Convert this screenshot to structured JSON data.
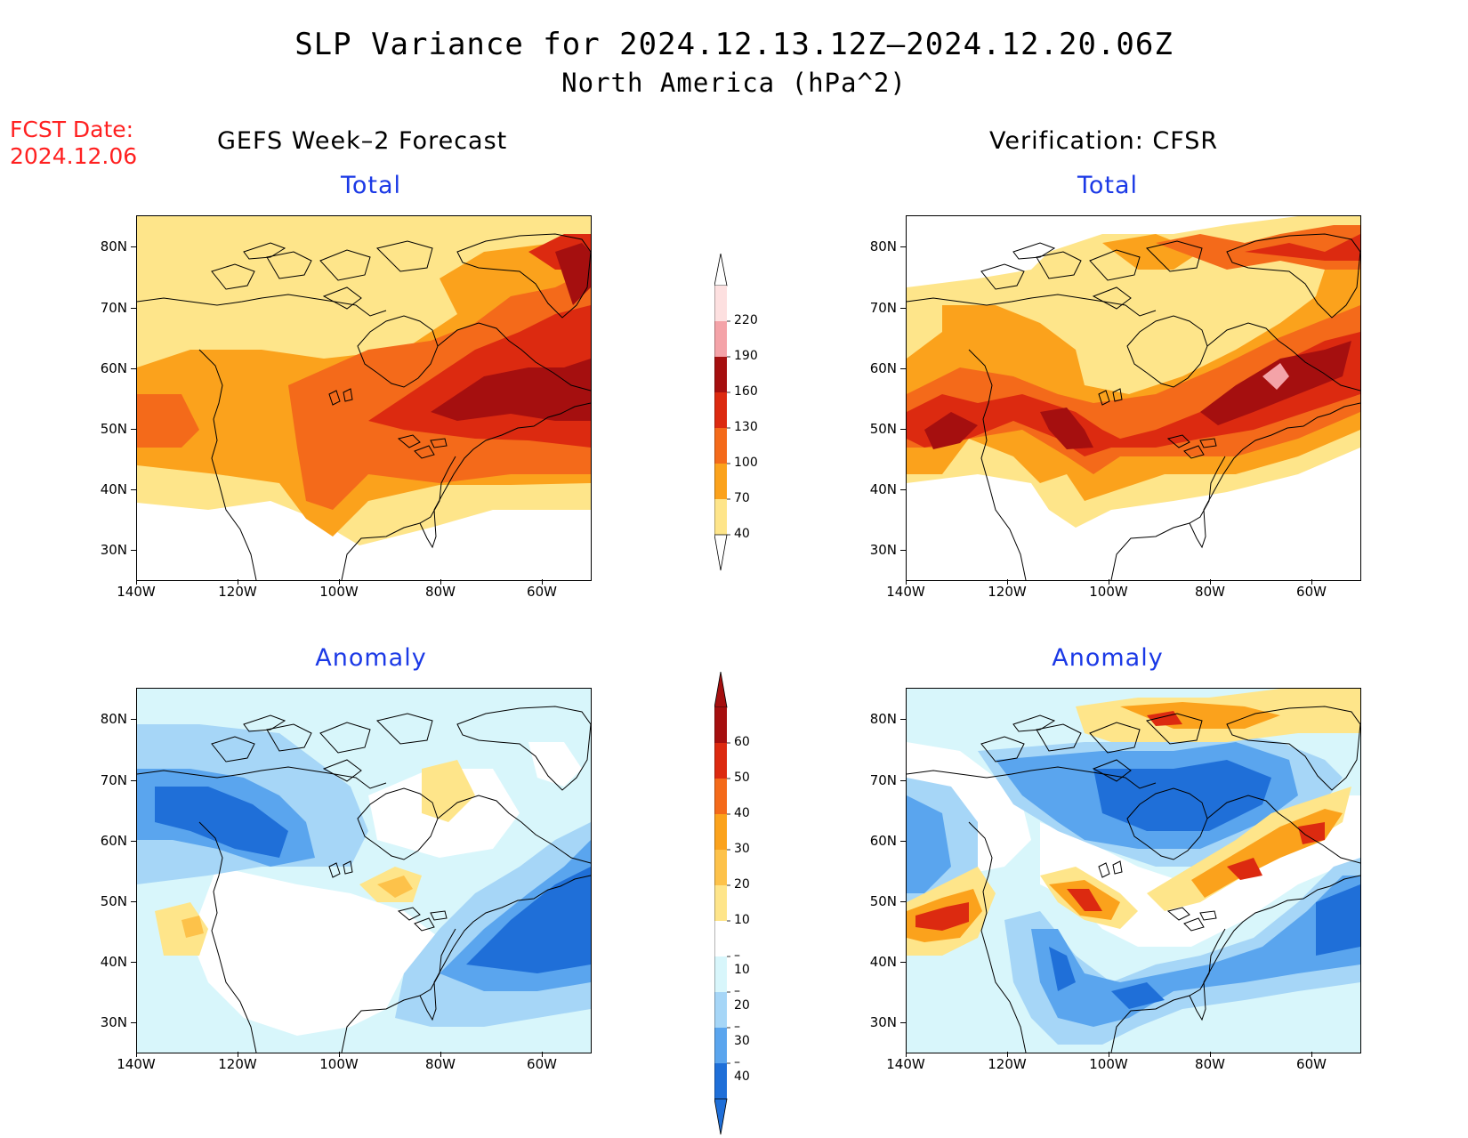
{
  "title_line1": "SLP Variance for 2024.12.13.12Z–2024.12.20.06Z",
  "title_line2": "North America (hPa^2)",
  "fcst_label": "FCST Date:",
  "fcst_date": "2024.12.06",
  "left_column_title": "GEFS Week–2 Forecast",
  "right_column_title": "Verification: CFSR",
  "panels": {
    "top_left_title": "Total",
    "top_right_title": "Total",
    "bottom_left_title": "Anomaly",
    "bottom_right_title": "Anomaly"
  },
  "axes": {
    "lat_labels": [
      "80N",
      "70N",
      "60N",
      "50N",
      "40N",
      "30N"
    ],
    "lon_labels": [
      "140W",
      "120W",
      "100W",
      "80W",
      "60W"
    ]
  },
  "total_colorbar": {
    "labels": [
      "220",
      "190",
      "160",
      "130",
      "100",
      "70",
      "40"
    ],
    "colors": [
      "#fde0e0",
      "#f4a3a8",
      "#a50f0f",
      "#dc2a10",
      "#f46a1a",
      "#fba21c",
      "#fee58a"
    ]
  },
  "anomaly_colorbar": {
    "labels": [
      "60",
      "50",
      "40",
      "30",
      "20",
      "10",
      "–10",
      "–20",
      "–30",
      "–40"
    ],
    "colors": [
      "#a50f0f",
      "#dc2a10",
      "#f46a1a",
      "#fba21c",
      "#fdc24a",
      "#fee58a",
      "#ffffff",
      "#d8f6fb",
      "#a6d6f7",
      "#5aa5ee",
      "#1f6fd8"
    ]
  }
}
